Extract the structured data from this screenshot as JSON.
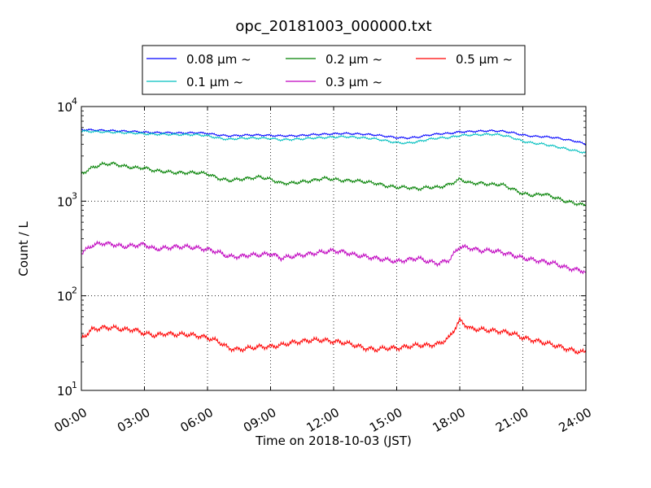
{
  "chart_data": {
    "type": "line",
    "title": "opc_20181003_000000.txt",
    "xlabel": "Time on 2018-10-03 (JST)",
    "ylabel": "Count / L",
    "yscale": "log",
    "xlim": [
      0,
      24
    ],
    "ylim": [
      10,
      10000
    ],
    "grid": true,
    "legend_position": "top-center",
    "x_tick_values": [
      0,
      3,
      6,
      9,
      12,
      15,
      18,
      21,
      24
    ],
    "x_tick_labels": [
      "00:00",
      "03:00",
      "06:00",
      "09:00",
      "12:00",
      "15:00",
      "18:00",
      "21:00",
      "24:00"
    ],
    "y_ticks": [
      {
        "value": 10,
        "base": "10",
        "exp": "1"
      },
      {
        "value": 100,
        "base": "10",
        "exp": "2"
      },
      {
        "value": 1000,
        "base": "10",
        "exp": "3"
      },
      {
        "value": 10000,
        "base": "10",
        "exp": "4"
      }
    ],
    "x": [
      0,
      0.5,
      1,
      1.5,
      2,
      2.5,
      3,
      3.5,
      4,
      4.5,
      5,
      5.5,
      6,
      6.5,
      7,
      7.5,
      8,
      8.5,
      9,
      9.5,
      10,
      10.5,
      11,
      11.5,
      12,
      12.5,
      13,
      13.5,
      14,
      14.5,
      15,
      15.5,
      16,
      16.5,
      17,
      17.5,
      18,
      18.5,
      19,
      19.5,
      20,
      20.5,
      21,
      21.5,
      22,
      22.5,
      23,
      23.5,
      24
    ],
    "series": [
      {
        "name": "0.08 μm ~",
        "color": "#0000ff",
        "values": [
          5700,
          5650,
          5600,
          5550,
          5500,
          5450,
          5350,
          5300,
          5300,
          5250,
          5250,
          5300,
          5200,
          5000,
          4900,
          4950,
          5000,
          5000,
          4950,
          4900,
          4900,
          4950,
          5050,
          5100,
          5150,
          5200,
          5150,
          5100,
          5000,
          4850,
          4700,
          4650,
          4750,
          5000,
          5150,
          5200,
          5400,
          5450,
          5500,
          5550,
          5500,
          5300,
          5000,
          4850,
          4800,
          4700,
          4500,
          4300,
          4000
        ]
      },
      {
        "name": "0.1 μm ~",
        "color": "#00bfbf",
        "values": [
          5500,
          5450,
          5400,
          5350,
          5300,
          5250,
          5150,
          5100,
          5100,
          5050,
          5050,
          5050,
          4900,
          4650,
          4500,
          4600,
          4650,
          4650,
          4600,
          4450,
          4500,
          4550,
          4650,
          4700,
          4750,
          4800,
          4750,
          4650,
          4550,
          4350,
          4150,
          4100,
          4250,
          4500,
          4650,
          4700,
          4950,
          5000,
          5050,
          5100,
          5000,
          4700,
          4300,
          4100,
          4000,
          3800,
          3600,
          3400,
          3250
        ]
      },
      {
        "name": "0.2 μm ~",
        "color": "#008000",
        "values": [
          1950,
          2250,
          2450,
          2500,
          2350,
          2250,
          2250,
          2100,
          2050,
          2000,
          2000,
          2000,
          1950,
          1750,
          1650,
          1700,
          1750,
          1800,
          1700,
          1550,
          1550,
          1600,
          1650,
          1750,
          1700,
          1650,
          1650,
          1600,
          1550,
          1450,
          1400,
          1400,
          1350,
          1400,
          1400,
          1500,
          1700,
          1550,
          1550,
          1500,
          1500,
          1350,
          1200,
          1150,
          1200,
          1100,
          1000,
          950,
          900
        ]
      },
      {
        "name": "0.3 μm ~",
        "color": "#bf00bf",
        "values": [
          280,
          340,
          360,
          350,
          330,
          340,
          350,
          310,
          320,
          330,
          330,
          320,
          310,
          290,
          260,
          260,
          270,
          270,
          280,
          250,
          260,
          270,
          280,
          290,
          300,
          290,
          270,
          260,
          250,
          240,
          230,
          240,
          250,
          230,
          220,
          240,
          330,
          320,
          300,
          300,
          290,
          270,
          250,
          240,
          230,
          220,
          200,
          190,
          180
        ]
      },
      {
        "name": "0.5 μm ~",
        "color": "#ff0000",
        "values": [
          35,
          44,
          46,
          46,
          44,
          44,
          40,
          38,
          40,
          39,
          39,
          38,
          36,
          33,
          28,
          27,
          28,
          29,
          29,
          30,
          32,
          33,
          34,
          34,
          33,
          32,
          30,
          28,
          27,
          28,
          28,
          29,
          30,
          30,
          31,
          36,
          55,
          45,
          44,
          43,
          42,
          40,
          36,
          34,
          32,
          30,
          28,
          26,
          25
        ]
      }
    ]
  }
}
